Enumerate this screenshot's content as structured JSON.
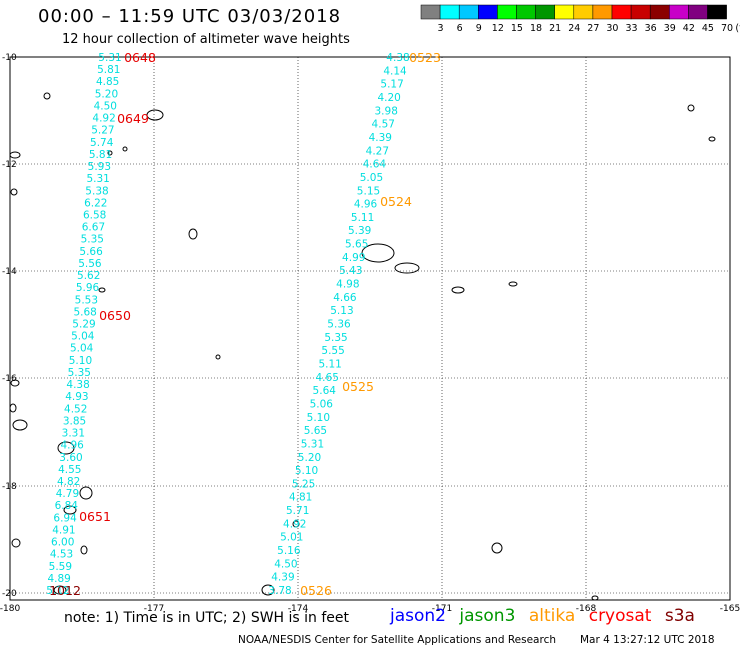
{
  "title": "00:00 – 11:59 UTC 03/03/2018",
  "subtitle": "12 hour collection of altimeter wave heights",
  "scale": {
    "labels": [
      "3",
      "6",
      "9",
      "12",
      "15",
      "18",
      "21",
      "24",
      "27",
      "30",
      "33",
      "36",
      "39",
      "42",
      "45",
      "70"
    ],
    "unit": "(ft)",
    "colors": [
      "#808080",
      "#00ffff",
      "#00c8ff",
      "#0000ff",
      "#00ff00",
      "#00c800",
      "#009600",
      "#ffff00",
      "#ffcc00",
      "#ff9900",
      "#ff0000",
      "#c80000",
      "#8b0000",
      "#c800c8",
      "#800080",
      "#000000"
    ]
  },
  "axes": {
    "x_ticks": [
      "-180",
      "-177",
      "-174",
      "-171",
      "-168",
      "-165"
    ],
    "y_ticks": [
      "-10",
      "-12",
      "-14",
      "-16",
      "-18",
      "-20"
    ]
  },
  "tracks": [
    {
      "name": "jason2",
      "labels": [
        {
          "text": "0648"
        },
        {
          "text": "0649"
        },
        {
          "text": "0650"
        },
        {
          "text": "0651"
        },
        {
          "text": "1012"
        }
      ],
      "values": [
        "5.31",
        "5.81",
        "4.85",
        "5.20",
        "4.50",
        "4.92",
        "5.27",
        "5.74",
        "5.81",
        "5.93",
        "5.31",
        "5.38",
        "6.22",
        "6.58",
        "6.67",
        "5.35",
        "5.66",
        "5.56",
        "5.62",
        "5.96",
        "5.53",
        "5.68",
        "5.29",
        "5.04",
        "5.04",
        "5.10",
        "5.35",
        "4.38",
        "4.93",
        "4.52",
        "3.85",
        "3.31",
        "4.96",
        "3.60",
        "4.55",
        "4.82",
        "4.79",
        "6.84",
        "6.94",
        "4.91",
        "6.00",
        "4.53",
        "5.59",
        "4.89",
        "5.12"
      ]
    },
    {
      "name": "altika",
      "labels": [
        {
          "text": "0523"
        },
        {
          "text": "0524"
        },
        {
          "text": "0525"
        },
        {
          "text": "0526"
        }
      ],
      "values": [
        "4.38",
        "4.14",
        "5.17",
        "4.20",
        "3.98",
        "4.57",
        "4.39",
        "4.27",
        "4.64",
        "5.05",
        "5.15",
        "4.96",
        "5.11",
        "5.39",
        "5.65",
        "4.99",
        "5.43",
        "4.98",
        "4.66",
        "5.13",
        "5.36",
        "5.35",
        "5.55",
        "5.11",
        "4.65",
        "5.64",
        "5.06",
        "5.10",
        "5.65",
        "5.31",
        "5.20",
        "5.10",
        "5.25",
        "4.81",
        "5.71",
        "4.92",
        "5.01",
        "5.16",
        "4.50",
        "4.39",
        "3.78"
      ]
    }
  ],
  "note": "note:  1) Time is in UTC;  2) SWH is in feet",
  "legend": [
    {
      "name": "jason2",
      "color": "#0000ff"
    },
    {
      "name": "jason3",
      "color": "#009600"
    },
    {
      "name": "altika",
      "color": "#ff9900"
    },
    {
      "name": "cryosat",
      "color": "#ff0000"
    },
    {
      "name": "s3a",
      "color": "#800000"
    }
  ],
  "credit": "NOAA/NESDIS Center for Satellite Applications and Research",
  "timestamp": "Mar  4 13:27:12 UTC 2018"
}
